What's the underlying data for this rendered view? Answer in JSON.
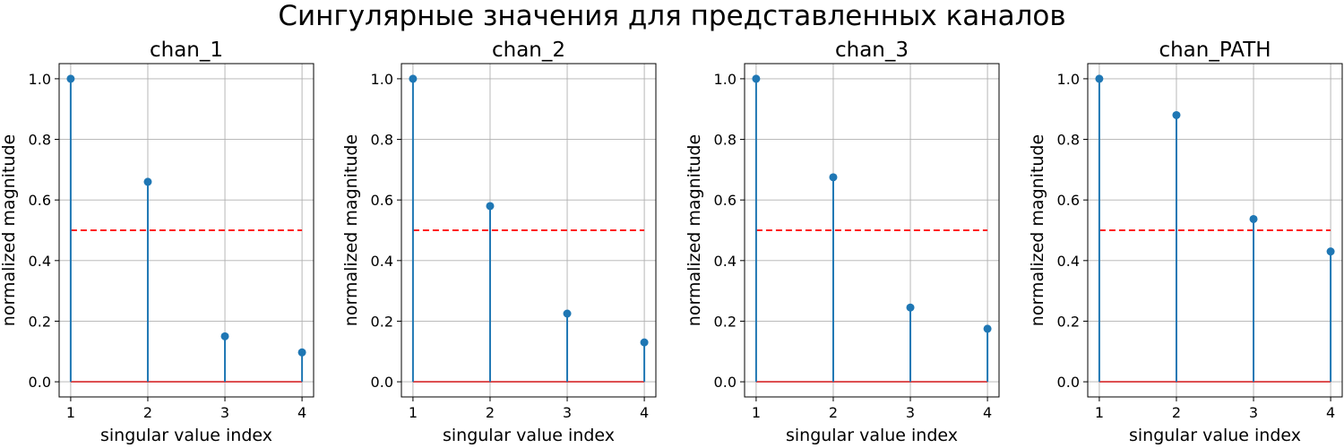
{
  "suptitle": "Сингулярные значения для представленных каналов",
  "chart_data": [
    {
      "type": "stem",
      "title": "chan_1",
      "xlabel": "singular value index",
      "ylabel": "normalized magnitude",
      "x": [
        1,
        2,
        3,
        4
      ],
      "values": [
        1.0,
        0.66,
        0.15,
        0.097
      ],
      "threshold": 0.5,
      "xticks": [
        "1",
        "2",
        "3",
        "4"
      ],
      "yticks": [
        "0.0",
        "0.2",
        "0.4",
        "0.6",
        "0.8",
        "1.0"
      ],
      "xlim": [
        0.85,
        4.15
      ],
      "ylim": [
        -0.05,
        1.05
      ],
      "grid": true
    },
    {
      "type": "stem",
      "title": "chan_2",
      "xlabel": "singular value index",
      "ylabel": "normalized magnitude",
      "x": [
        1,
        2,
        3,
        4
      ],
      "values": [
        1.0,
        0.58,
        0.225,
        0.13
      ],
      "threshold": 0.5,
      "xticks": [
        "1",
        "2",
        "3",
        "4"
      ],
      "yticks": [
        "0.0",
        "0.2",
        "0.4",
        "0.6",
        "0.8",
        "1.0"
      ],
      "xlim": [
        0.85,
        4.15
      ],
      "ylim": [
        -0.05,
        1.05
      ],
      "grid": true
    },
    {
      "type": "stem",
      "title": "chan_3",
      "xlabel": "singular value index",
      "ylabel": "normalized magnitude",
      "x": [
        1,
        2,
        3,
        4
      ],
      "values": [
        1.0,
        0.675,
        0.245,
        0.175
      ],
      "threshold": 0.5,
      "xticks": [
        "1",
        "2",
        "3",
        "4"
      ],
      "yticks": [
        "0.0",
        "0.2",
        "0.4",
        "0.6",
        "0.8",
        "1.0"
      ],
      "xlim": [
        0.85,
        4.15
      ],
      "ylim": [
        -0.05,
        1.05
      ],
      "grid": true
    },
    {
      "type": "stem",
      "title": "chan_PATH",
      "xlabel": "singular value index",
      "ylabel": "normalized magnitude",
      "x": [
        1,
        2,
        3,
        4
      ],
      "values": [
        1.0,
        0.88,
        0.537,
        0.43
      ],
      "threshold": 0.5,
      "xticks": [
        "1",
        "2",
        "3",
        "4"
      ],
      "yticks": [
        "0.0",
        "0.2",
        "0.4",
        "0.6",
        "0.8",
        "1.0"
      ],
      "xlim": [
        0.85,
        4.15
      ],
      "ylim": [
        -0.05,
        1.05
      ],
      "grid": true
    }
  ],
  "colors": {
    "stem": "#1f77b4",
    "baseline": "#d62728",
    "threshold": "#ff0000",
    "grid": "#b0b0b0",
    "axis": "#000000"
  }
}
